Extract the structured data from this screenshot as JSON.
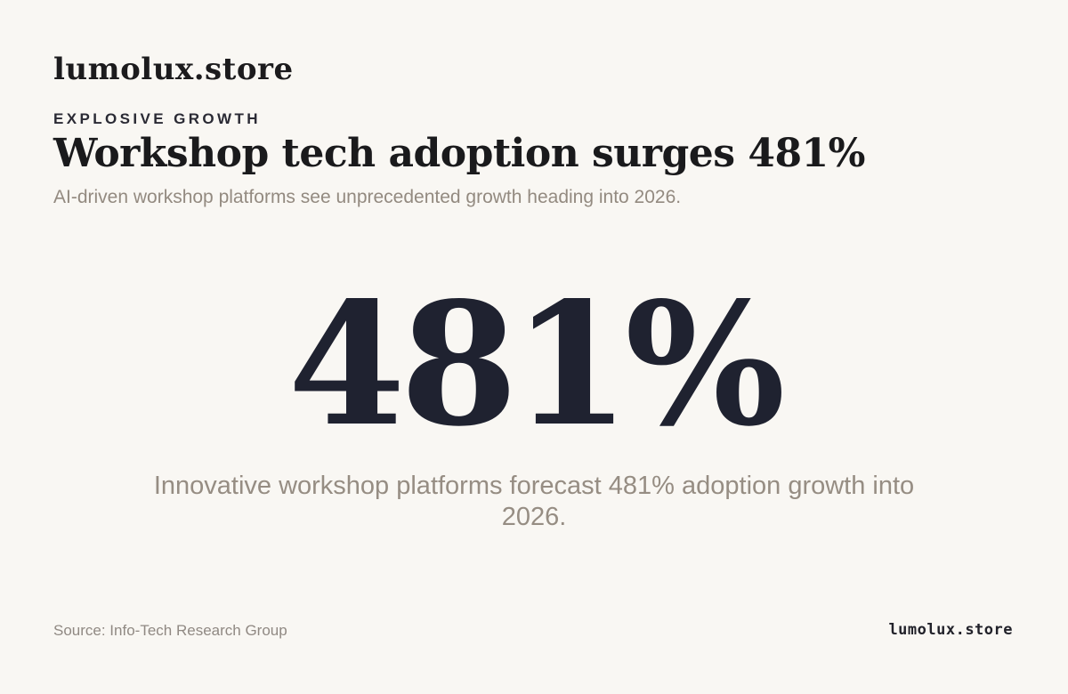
{
  "header": {
    "brand": "lumolux.store",
    "eyebrow": "EXPLOSIVE GROWTH",
    "headline": "Workshop tech adoption surges 481%",
    "subhead": "AI-driven workshop platforms see unprecedented growth heading into 2026."
  },
  "main": {
    "stat": "481%",
    "caption": "Innovative workshop platforms forecast 481% adoption growth into 2026."
  },
  "footer": {
    "source": "Source: Info-Tech Research Group",
    "brand": "lumolux.store"
  },
  "colors": {
    "background": "#f9f7f3",
    "heading": "#1a1a1c",
    "stat": "#1f2230",
    "muted": "#968d83"
  }
}
